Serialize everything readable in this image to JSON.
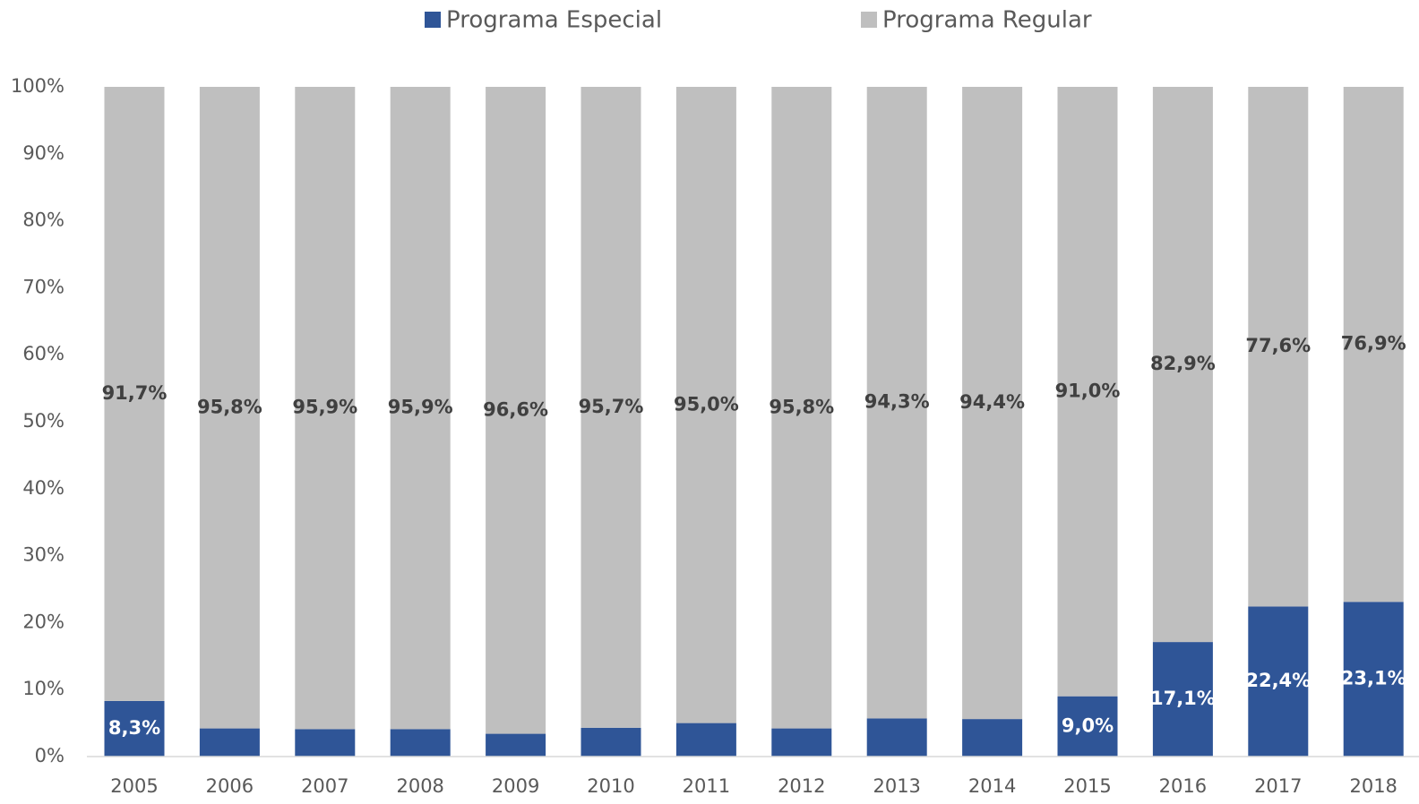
{
  "chart_data": {
    "type": "stacked_bar",
    "categories": [
      "2005",
      "2006",
      "2007",
      "2008",
      "2009",
      "2010",
      "2011",
      "2012",
      "2013",
      "2014",
      "2015",
      "2016",
      "2017",
      "2018"
    ],
    "series": [
      {
        "name": "Programa Especial",
        "color": "#2f5597",
        "label_color": "#ffffff",
        "values": [
          8.3,
          4.2,
          4.1,
          4.1,
          3.4,
          4.3,
          5.0,
          4.2,
          5.7,
          5.6,
          9.0,
          17.1,
          22.4,
          23.1
        ],
        "value_labels": [
          "8,3%",
          null,
          null,
          null,
          null,
          null,
          null,
          null,
          null,
          null,
          "9,0%",
          "17,1%",
          "22,4%",
          "23,1%"
        ]
      },
      {
        "name": "Programa Regular",
        "color": "#bfbfbf",
        "label_color": "#404040",
        "values": [
          91.7,
          95.8,
          95.9,
          95.9,
          96.6,
          95.7,
          95.0,
          95.8,
          94.3,
          94.4,
          91.0,
          82.9,
          77.6,
          76.9
        ],
        "value_labels": [
          "91,7%",
          "95,8%",
          "95,9%",
          "95,9%",
          "96,6%",
          "95,7%",
          "95,0%",
          "95,8%",
          "94,3%",
          "94,4%",
          "91,0%",
          "82,9%",
          "77,6%",
          "76,9%"
        ]
      }
    ],
    "ylim": [
      0,
      100
    ],
    "yticks": [
      {
        "value": 0,
        "label": "0%"
      },
      {
        "value": 10,
        "label": "10%"
      },
      {
        "value": 20,
        "label": "20%"
      },
      {
        "value": 30,
        "label": "30%"
      },
      {
        "value": 40,
        "label": "40%"
      },
      {
        "value": 50,
        "label": "50%"
      },
      {
        "value": 60,
        "label": "60%"
      },
      {
        "value": 70,
        "label": "70%"
      },
      {
        "value": 80,
        "label": "80%"
      },
      {
        "value": 90,
        "label": "90%"
      },
      {
        "value": 100,
        "label": "100%"
      }
    ],
    "legend": "top"
  }
}
